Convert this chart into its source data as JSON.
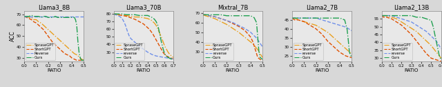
{
  "panels": [
    {
      "title": "Llama3_8B",
      "xlabel": "RATIO",
      "ylabel": "ACC",
      "xlim": [
        0.0,
        0.5
      ],
      "ylim": [
        27,
        73
      ],
      "yticks": [
        30,
        40,
        50,
        60,
        70
      ],
      "xticks": [
        0.0,
        0.1,
        0.2,
        0.3,
        0.4,
        0.5
      ],
      "series": {
        "SpraseGPT": {
          "x": [
            0.0,
            0.02,
            0.04,
            0.06,
            0.08,
            0.1,
            0.12,
            0.14,
            0.16,
            0.18,
            0.2,
            0.22,
            0.24,
            0.26,
            0.28,
            0.3,
            0.32,
            0.34,
            0.36,
            0.38,
            0.4,
            0.42,
            0.44,
            0.46,
            0.48,
            0.5
          ],
          "y": [
            68,
            68,
            67,
            67,
            65,
            65,
            63,
            62,
            60,
            58,
            56,
            54,
            52,
            50,
            48,
            46,
            44,
            42,
            40,
            38,
            36,
            34,
            33,
            31,
            29,
            28
          ],
          "color": "#E8A020",
          "linestyle": "-.",
          "lw": 1.0
        },
        "ShortGPT": {
          "x": [
            0.0,
            0.02,
            0.04,
            0.06,
            0.08,
            0.1,
            0.12,
            0.14,
            0.16,
            0.18,
            0.2,
            0.22,
            0.24,
            0.26,
            0.28,
            0.3,
            0.32,
            0.34,
            0.36,
            0.38,
            0.4,
            0.42,
            0.44,
            0.46,
            0.48,
            0.5
          ],
          "y": [
            68,
            67,
            66,
            65,
            63,
            62,
            60,
            58,
            56,
            53,
            50,
            47,
            44,
            42,
            40,
            38,
            36,
            34,
            33,
            32,
            30,
            29,
            28,
            28,
            28,
            28
          ],
          "color": "#E05000",
          "linestyle": "--",
          "lw": 1.0
        },
        "Reverse": {
          "x": [
            0.0,
            0.02,
            0.04,
            0.06,
            0.08,
            0.1,
            0.12,
            0.14,
            0.16,
            0.18,
            0.2,
            0.22,
            0.24,
            0.26,
            0.28,
            0.3,
            0.32,
            0.34,
            0.36,
            0.38,
            0.4,
            0.42,
            0.44,
            0.46,
            0.48,
            0.5
          ],
          "y": [
            68,
            68,
            68,
            68,
            68,
            68,
            68,
            68,
            68,
            68,
            68,
            68,
            68,
            68,
            68,
            68,
            68,
            68,
            68,
            68,
            68,
            68,
            68,
            68,
            68,
            68
          ],
          "color": "#7090E8",
          "linestyle": "--",
          "lw": 1.0
        },
        "Ours": {
          "x": [
            0.0,
            0.02,
            0.04,
            0.06,
            0.08,
            0.1,
            0.12,
            0.14,
            0.16,
            0.18,
            0.2,
            0.22,
            0.24,
            0.26,
            0.28,
            0.3,
            0.32,
            0.34,
            0.36,
            0.38,
            0.4,
            0.42,
            0.43,
            0.44,
            0.45,
            0.46,
            0.47,
            0.48,
            0.5
          ],
          "y": [
            68,
            68,
            68,
            69,
            68,
            68,
            68,
            67,
            68,
            68,
            67,
            67,
            67,
            68,
            67,
            67,
            67,
            67,
            67,
            67,
            67,
            67,
            65,
            60,
            45,
            35,
            30,
            28,
            28
          ],
          "color": "#20A050",
          "linestyle": "-.",
          "lw": 1.0
        }
      },
      "legend_labels": [
        "SpraseGPT",
        "ShortGPT",
        "Reverse",
        "Ours"
      ]
    },
    {
      "title": "Llama3_70B",
      "xlabel": "RATIO",
      "ylabel": "",
      "xlim": [
        0.0,
        0.7
      ],
      "ylim": [
        18,
        84
      ],
      "yticks": [
        30,
        40,
        50,
        60,
        70,
        80
      ],
      "xticks": [
        0.0,
        0.1,
        0.2,
        0.3,
        0.4,
        0.5,
        0.6,
        0.7
      ],
      "series": {
        "SpraseGPT": {
          "x": [
            0.0,
            0.02,
            0.05,
            0.1,
            0.15,
            0.2,
            0.25,
            0.3,
            0.35,
            0.4,
            0.42,
            0.44,
            0.46,
            0.48,
            0.5,
            0.52,
            0.54,
            0.56,
            0.58,
            0.6,
            0.62,
            0.64,
            0.66,
            0.68,
            0.7
          ],
          "y": [
            80,
            80,
            79,
            78,
            78,
            77,
            76,
            76,
            75,
            74,
            73,
            72,
            70,
            68,
            65,
            60,
            55,
            50,
            44,
            38,
            34,
            30,
            27,
            25,
            23
          ],
          "color": "#E8A020",
          "linestyle": "-.",
          "lw": 1.0
        },
        "ShortGPT": {
          "x": [
            0.0,
            0.02,
            0.05,
            0.1,
            0.15,
            0.2,
            0.25,
            0.3,
            0.35,
            0.4,
            0.42,
            0.44,
            0.46,
            0.48,
            0.5,
            0.52,
            0.54,
            0.56,
            0.58,
            0.6,
            0.62,
            0.64,
            0.66,
            0.68,
            0.7
          ],
          "y": [
            80,
            79,
            79,
            78,
            77,
            75,
            73,
            70,
            67,
            62,
            60,
            57,
            54,
            50,
            46,
            42,
            38,
            34,
            30,
            27,
            25,
            24,
            23,
            22,
            21
          ],
          "color": "#E05000",
          "linestyle": "--",
          "lw": 1.0
        },
        "reverse": {
          "x": [
            0.0,
            0.02,
            0.05,
            0.08,
            0.1,
            0.12,
            0.14,
            0.16,
            0.18,
            0.2,
            0.25,
            0.3,
            0.35,
            0.4,
            0.45,
            0.5,
            0.55,
            0.6,
            0.65,
            0.7
          ],
          "y": [
            80,
            79,
            78,
            76,
            74,
            70,
            65,
            58,
            52,
            48,
            43,
            38,
            34,
            30,
            27,
            25,
            24,
            23,
            22,
            21
          ],
          "color": "#7090E8",
          "linestyle": "--",
          "lw": 1.0
        },
        "Ours": {
          "x": [
            0.0,
            0.02,
            0.05,
            0.1,
            0.15,
            0.2,
            0.25,
            0.3,
            0.35,
            0.4,
            0.42,
            0.44,
            0.46,
            0.48,
            0.5,
            0.52,
            0.54,
            0.56,
            0.58,
            0.6,
            0.62,
            0.64,
            0.66,
            0.68,
            0.7
          ],
          "y": [
            80,
            80,
            80,
            80,
            79,
            79,
            79,
            78,
            78,
            78,
            77,
            76,
            75,
            73,
            70,
            65,
            55,
            44,
            35,
            28,
            25,
            23,
            22,
            21,
            20
          ],
          "color": "#20A050",
          "linestyle": "-.",
          "lw": 1.0
        }
      },
      "legend_labels": [
        "SpraseGPT",
        "ShortGPT",
        "reverse",
        "Ours"
      ]
    },
    {
      "title": "Mixtral_7B",
      "xlabel": "RATIO",
      "ylabel": "",
      "xlim": [
        0.0,
        0.5
      ],
      "ylim": [
        20,
        72
      ],
      "yticks": [
        30,
        40,
        50,
        60,
        70
      ],
      "xticks": [
        0.0,
        0.1,
        0.2,
        0.3,
        0.4,
        0.5
      ],
      "series": {
        "SpraseGPT": {
          "x": [
            0.0,
            0.02,
            0.05,
            0.1,
            0.15,
            0.2,
            0.25,
            0.3,
            0.35,
            0.4,
            0.42,
            0.44,
            0.46,
            0.48,
            0.5
          ],
          "y": [
            68,
            67,
            66,
            64,
            61,
            58,
            54,
            50,
            45,
            40,
            38,
            35,
            32,
            28,
            24
          ],
          "color": "#E8A020",
          "linestyle": "-.",
          "lw": 1.0
        },
        "ShortGPT": {
          "x": [
            0.0,
            0.02,
            0.05,
            0.1,
            0.15,
            0.2,
            0.25,
            0.3,
            0.35,
            0.38,
            0.4,
            0.42,
            0.44,
            0.46,
            0.48,
            0.5
          ],
          "y": [
            68,
            68,
            67,
            66,
            64,
            62,
            59,
            56,
            52,
            48,
            45,
            40,
            32,
            24,
            22,
            21
          ],
          "color": "#E05000",
          "linestyle": "--",
          "lw": 1.0
        },
        "reverse": {
          "x": [
            0.0,
            0.02,
            0.05,
            0.1,
            0.15,
            0.2,
            0.25,
            0.3,
            0.35,
            0.4,
            0.45,
            0.5
          ],
          "y": [
            68,
            68,
            67,
            66,
            64,
            62,
            60,
            57,
            54,
            50,
            44,
            35
          ],
          "color": "#7090E8",
          "linestyle": "--",
          "lw": 1.0
        },
        "Ours": {
          "x": [
            0.0,
            0.02,
            0.05,
            0.1,
            0.15,
            0.2,
            0.25,
            0.3,
            0.35,
            0.4,
            0.43,
            0.45,
            0.46,
            0.47,
            0.48,
            0.5
          ],
          "y": [
            68,
            68,
            68,
            68,
            68,
            67,
            67,
            67,
            67,
            67,
            65,
            60,
            45,
            30,
            24,
            22
          ],
          "color": "#20A050",
          "linestyle": "-.",
          "lw": 1.0
        }
      },
      "legend_labels": [
        "SpraseGPT",
        "ShortGPT",
        "reverse",
        "Ours"
      ]
    },
    {
      "title": "Llama2_7B",
      "xlabel": "RATIO",
      "ylabel": "",
      "xlim": [
        0.0,
        0.5
      ],
      "ylim": [
        22,
        50
      ],
      "yticks": [
        25,
        30,
        35,
        40,
        45
      ],
      "xticks": [
        0.0,
        0.1,
        0.2,
        0.3,
        0.4,
        0.5
      ],
      "series": {
        "SpraseGPT": {
          "x": [
            0.0,
            0.02,
            0.05,
            0.1,
            0.15,
            0.2,
            0.25,
            0.3,
            0.35,
            0.4,
            0.45,
            0.5
          ],
          "y": [
            46,
            46,
            45,
            44,
            43,
            42,
            40,
            38,
            35,
            32,
            29,
            26
          ],
          "color": "#E8A020",
          "linestyle": "-.",
          "lw": 1.0
        },
        "ShortGPT": {
          "x": [
            0.0,
            0.02,
            0.05,
            0.1,
            0.15,
            0.2,
            0.25,
            0.3,
            0.35,
            0.4,
            0.45,
            0.5
          ],
          "y": [
            46,
            45,
            45,
            44,
            42,
            40,
            37,
            33,
            30,
            27,
            25,
            24
          ],
          "color": "#E05000",
          "linestyle": "--",
          "lw": 1.0
        },
        "reverse": {
          "x": [
            0.0,
            0.02,
            0.05,
            0.1,
            0.15,
            0.2,
            0.25,
            0.3,
            0.35,
            0.4,
            0.45,
            0.5
          ],
          "y": [
            46,
            46,
            46,
            46,
            46,
            46,
            45,
            44,
            43,
            42,
            41,
            39
          ],
          "color": "#7090E8",
          "linestyle": "--",
          "lw": 1.0
        },
        "Ours": {
          "x": [
            0.0,
            0.02,
            0.05,
            0.1,
            0.15,
            0.2,
            0.25,
            0.3,
            0.35,
            0.4,
            0.44,
            0.46,
            0.47,
            0.48,
            0.5
          ],
          "y": [
            46,
            46,
            46,
            46,
            46,
            46,
            46,
            46,
            46,
            46,
            45,
            40,
            34,
            27,
            24
          ],
          "color": "#20A050",
          "linestyle": "-.",
          "lw": 1.0
        }
      },
      "legend_labels": [
        "SpraseGPT",
        "ShortGPT",
        "reverse",
        "Ours"
      ]
    },
    {
      "title": "Llama2_13B",
      "xlabel": "RATIO",
      "ylabel": "",
      "xlim": [
        0.0,
        0.6
      ],
      "ylim": [
        28,
        60
      ],
      "yticks": [
        30,
        35,
        40,
        45,
        50,
        55
      ],
      "xticks": [
        0.0,
        0.1,
        0.2,
        0.3,
        0.4,
        0.5,
        0.6
      ],
      "series": {
        "SpraseGPT": {
          "x": [
            0.0,
            0.02,
            0.05,
            0.1,
            0.15,
            0.2,
            0.25,
            0.3,
            0.35,
            0.4,
            0.45,
            0.5,
            0.55,
            0.6
          ],
          "y": [
            57,
            57,
            57,
            56,
            55,
            53,
            51,
            49,
            47,
            44,
            41,
            38,
            34,
            30
          ],
          "color": "#E8A020",
          "linestyle": "-.",
          "lw": 1.0
        },
        "ShortGPT": {
          "x": [
            0.0,
            0.02,
            0.05,
            0.1,
            0.15,
            0.2,
            0.25,
            0.3,
            0.35,
            0.4,
            0.45,
            0.5,
            0.55,
            0.6
          ],
          "y": [
            57,
            56,
            56,
            55,
            53,
            51,
            48,
            45,
            41,
            37,
            33,
            30,
            29,
            28
          ],
          "color": "#E05000",
          "linestyle": "--",
          "lw": 1.0
        },
        "reverse": {
          "x": [
            0.0,
            0.02,
            0.05,
            0.1,
            0.15,
            0.2,
            0.25,
            0.3,
            0.35,
            0.4,
            0.45,
            0.5,
            0.55,
            0.6
          ],
          "y": [
            57,
            57,
            57,
            57,
            56,
            55,
            54,
            53,
            51,
            49,
            47,
            44,
            41,
            36
          ],
          "color": "#7090E8",
          "linestyle": "--",
          "lw": 1.0
        },
        "Ours": {
          "x": [
            0.0,
            0.02,
            0.05,
            0.1,
            0.15,
            0.2,
            0.25,
            0.3,
            0.35,
            0.4,
            0.45,
            0.5,
            0.52,
            0.54,
            0.56,
            0.58,
            0.6
          ],
          "y": [
            57,
            57,
            57,
            57,
            57,
            57,
            57,
            57,
            56,
            56,
            55,
            54,
            50,
            44,
            38,
            32,
            29
          ],
          "color": "#20A050",
          "linestyle": "-.",
          "lw": 1.0
        }
      },
      "legend_labels": [
        "SpraseGPT",
        "ShortGPT",
        "reverse",
        "Ours"
      ]
    }
  ],
  "fig_bgcolor": "#D8D8D8",
  "axes_bgcolor": "#E8E8E8",
  "fig_width": 6.4,
  "fig_height": 1.26,
  "dpi": 100
}
